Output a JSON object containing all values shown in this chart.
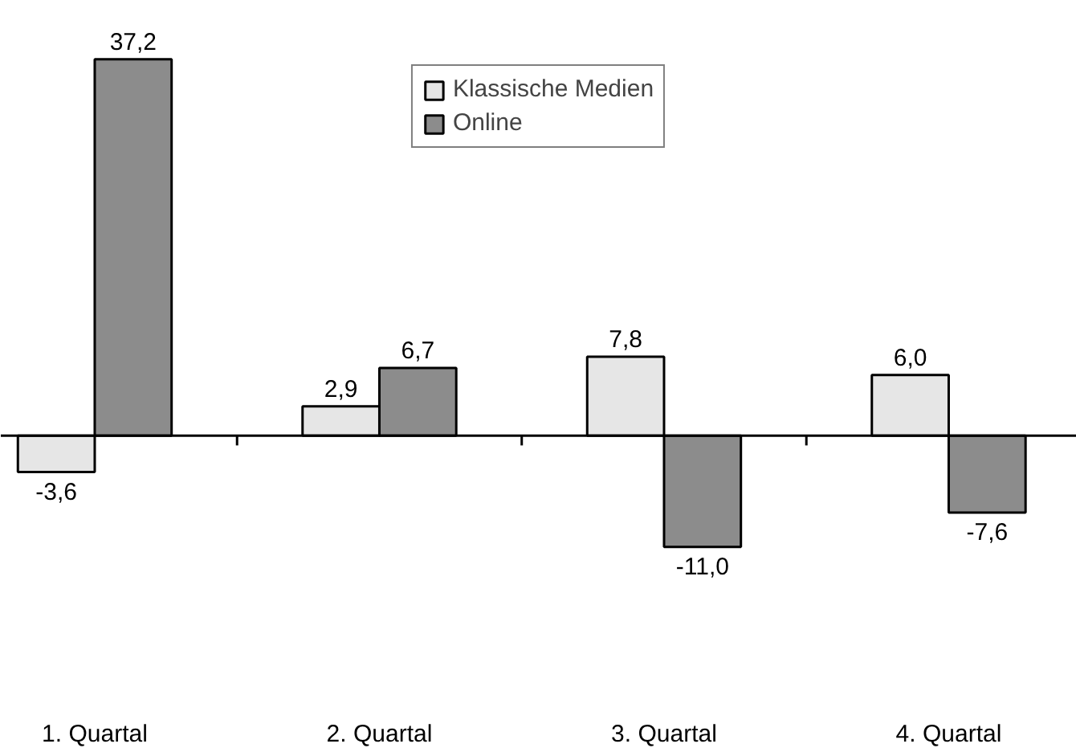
{
  "chart_data": {
    "type": "bar",
    "categories": [
      "1. Quartal",
      "2. Quartal",
      "3. Quartal",
      "4. Quartal"
    ],
    "series": [
      {
        "name": "Klassische Medien",
        "color": "#e6e6e6",
        "values": [
          -3.6,
          2.9,
          7.8,
          6.0
        ],
        "value_labels": [
          "-3,6",
          "2,9",
          "7,8",
          "6,0"
        ]
      },
      {
        "name": "Online",
        "color": "#8c8c8c",
        "values": [
          37.2,
          6.7,
          -11.0,
          -7.6
        ],
        "value_labels": [
          "37,2",
          "6,7",
          "-11,0",
          "-7,6"
        ]
      }
    ],
    "legend": "top",
    "grid": false
  }
}
